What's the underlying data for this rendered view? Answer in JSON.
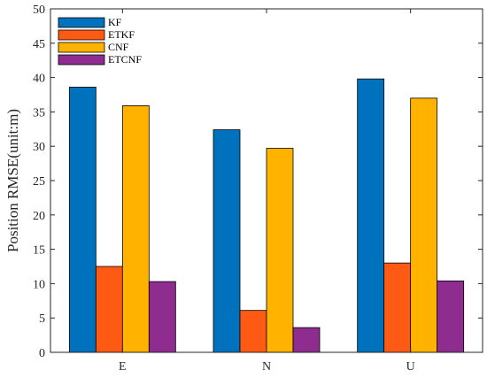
{
  "chart_data": {
    "type": "bar",
    "categories": [
      "E",
      "N",
      "U"
    ],
    "series": [
      {
        "name": "KF",
        "color": "#0072BD",
        "values": [
          38.6,
          32.4,
          39.8
        ]
      },
      {
        "name": "ETKF",
        "color": "#FF5A14",
        "values": [
          12.5,
          6.1,
          13.0
        ]
      },
      {
        "name": "CNF",
        "color": "#FFB300",
        "values": [
          35.9,
          29.7,
          37.0
        ]
      },
      {
        "name": "ETCNF",
        "color": "#8E2C90",
        "values": [
          10.3,
          3.6,
          10.4
        ]
      }
    ],
    "title": "",
    "xlabel": "",
    "ylabel": "Position RMSE(unit:m)",
    "ylim": [
      0,
      50
    ],
    "yticks": [
      0,
      5,
      10,
      15,
      20,
      25,
      30,
      35,
      40,
      45,
      50
    ],
    "grid": false,
    "legend_position": "top-left"
  }
}
